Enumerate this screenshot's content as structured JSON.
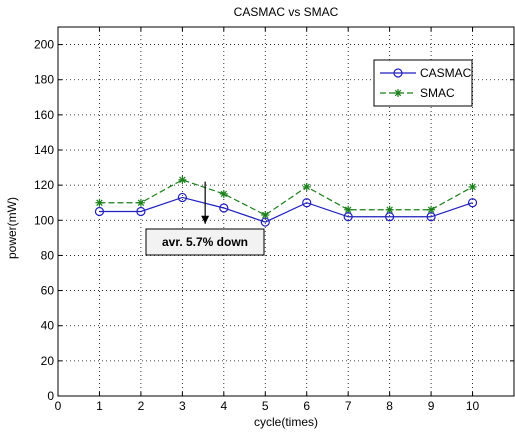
{
  "chart_data": {
    "type": "line",
    "title": "CASMAC vs SMAC",
    "xlabel": "cycle(times)",
    "ylabel": "power(mW)",
    "xlim": [
      0,
      11
    ],
    "ylim": [
      0,
      210
    ],
    "xticks": [
      0,
      1,
      2,
      3,
      4,
      5,
      6,
      7,
      8,
      9,
      10
    ],
    "yticks": [
      0,
      20,
      40,
      60,
      80,
      100,
      120,
      140,
      160,
      180,
      200
    ],
    "grid": true,
    "legend_position": "top-right",
    "x": [
      1,
      2,
      3,
      4,
      5,
      6,
      7,
      8,
      9,
      10
    ],
    "series": [
      {
        "name": "CASMAC",
        "color": "#1f1fbf",
        "marker": "circle",
        "line_style": "solid",
        "values": [
          105,
          105,
          113,
          107,
          99,
          110,
          102,
          102,
          102,
          110
        ]
      },
      {
        "name": "SMAC",
        "color": "#1a7f1a",
        "marker": "asterisk",
        "line_style": "dashed",
        "values": [
          110,
          110,
          123,
          115,
          103,
          119,
          106,
          106,
          106,
          119
        ]
      }
    ],
    "annotation": {
      "text": "avr. 5.7% down",
      "arrow_x": 3.55,
      "arrow_from_y": 122,
      "arrow_to_y": 98
    }
  }
}
